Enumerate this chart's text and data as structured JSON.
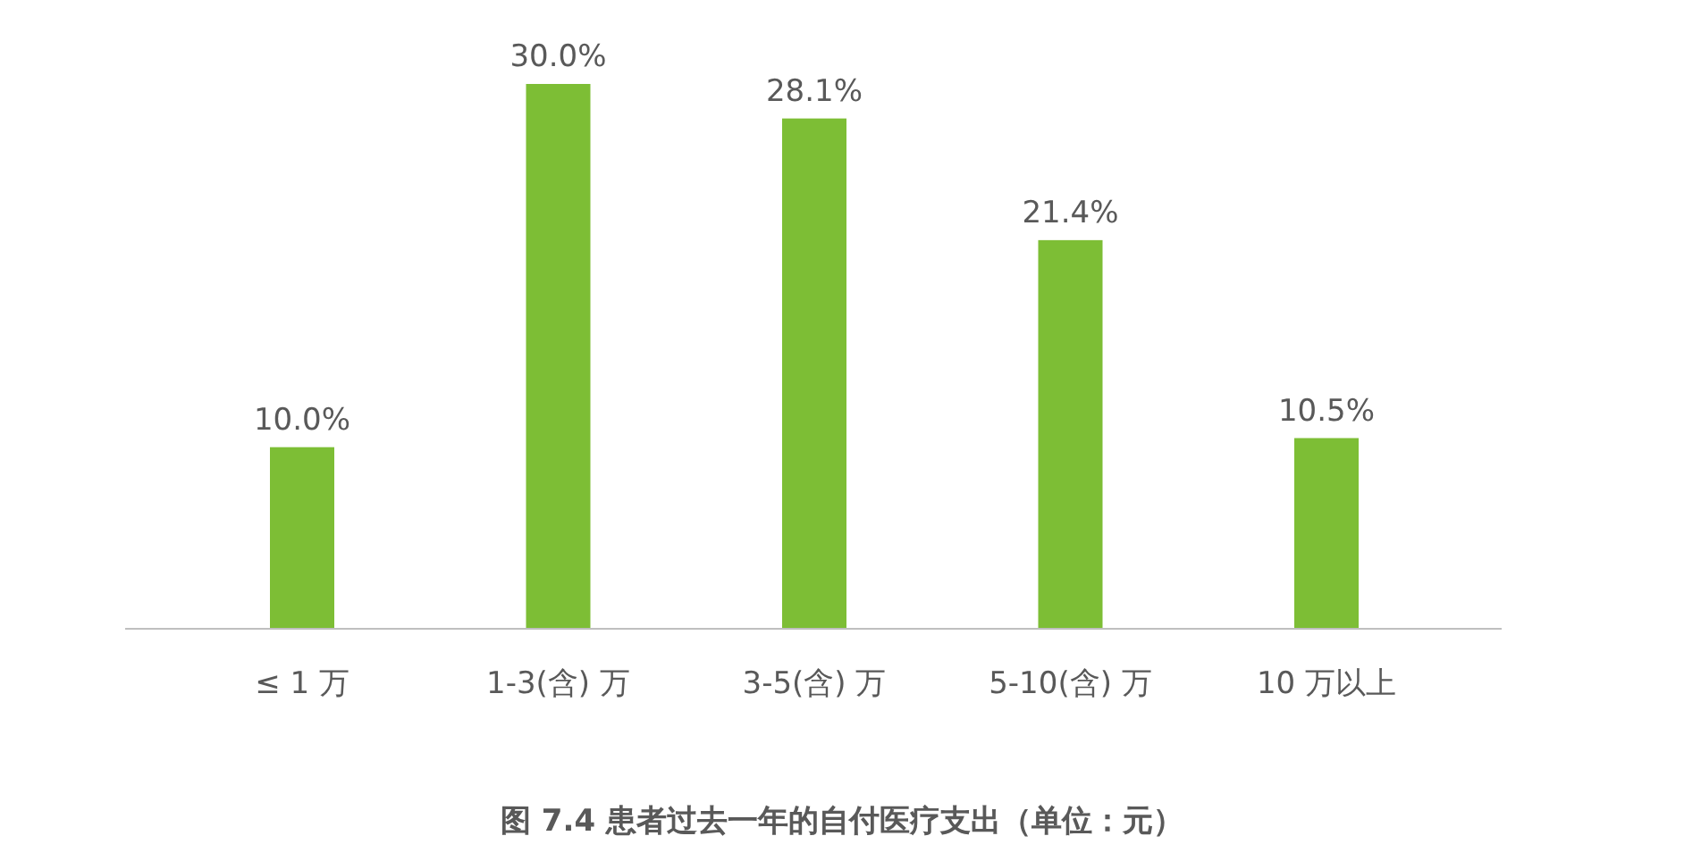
{
  "chart_data": {
    "type": "bar",
    "title": "图 7.4 患者过去一年的自付医疗支出（单位：元）",
    "categories": [
      "≤ 1 万",
      "1-3(含) 万",
      "3-5(含) 万",
      "5-10(含) 万",
      "10 万以上"
    ],
    "values": [
      10.0,
      30.0,
      28.1,
      21.4,
      10.5
    ],
    "value_labels": [
      "10.0%",
      "30.0%",
      "28.1%",
      "21.4%",
      "10.5%"
    ],
    "color": "#7dbe35",
    "ylim": [
      0,
      30
    ],
    "tick_labels": "x"
  }
}
